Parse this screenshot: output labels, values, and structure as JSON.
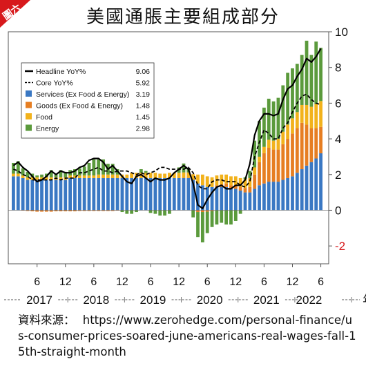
{
  "badge": {
    "label": "圖六",
    "color": "#d7191c"
  },
  "title": "美國通脹主要組成部分",
  "source": {
    "label": "資料來源：",
    "url": "https://www.zerohedge.com/personal-finance/us-consumer-prices-soared-june-americans-real-wages-fall-15th-straight-month"
  },
  "legend": {
    "items": [
      {
        "label": "Headline YoY%",
        "value": "9.06",
        "kind": "solid-line",
        "color": "#000000"
      },
      {
        "label": "Core YoY%",
        "value": "5.92",
        "kind": "dashed-line",
        "color": "#000000"
      },
      {
        "label": "Services (Ex Food & Energy)",
        "value": "3.19",
        "kind": "box",
        "color": "#3a78c3"
      },
      {
        "label": "Goods (Ex Food & Energy)",
        "value": "1.48",
        "kind": "box",
        "color": "#e67e22"
      },
      {
        "label": "Food",
        "value": "1.45",
        "kind": "box",
        "color": "#f2b21c"
      },
      {
        "label": "Energy",
        "value": "2.98",
        "kind": "box",
        "color": "#5b9a3c"
      }
    ]
  },
  "chart_data": {
    "type": "bar",
    "stacked": true,
    "y_axis_side": "right",
    "ylim": [
      -3,
      10
    ],
    "yticks": [
      -2,
      0,
      2,
      4,
      6,
      8,
      10
    ],
    "negative_tick_color": "#d7191c",
    "grid": false,
    "legend_position": "top-left",
    "x": [
      "2017-01",
      "2017-02",
      "2017-03",
      "2017-04",
      "2017-05",
      "2017-06",
      "2017-07",
      "2017-08",
      "2017-09",
      "2017-10",
      "2017-11",
      "2017-12",
      "2018-01",
      "2018-02",
      "2018-03",
      "2018-04",
      "2018-05",
      "2018-06",
      "2018-07",
      "2018-08",
      "2018-09",
      "2018-10",
      "2018-11",
      "2018-12",
      "2019-01",
      "2019-02",
      "2019-03",
      "2019-04",
      "2019-05",
      "2019-06",
      "2019-07",
      "2019-08",
      "2019-09",
      "2019-10",
      "2019-11",
      "2019-12",
      "2020-01",
      "2020-02",
      "2020-03",
      "2020-04",
      "2020-05",
      "2020-06",
      "2020-07",
      "2020-08",
      "2020-09",
      "2020-10",
      "2020-11",
      "2020-12",
      "2021-01",
      "2021-02",
      "2021-03",
      "2021-04",
      "2021-05",
      "2021-06",
      "2021-07",
      "2021-08",
      "2021-09",
      "2021-10",
      "2021-11",
      "2021-12",
      "2022-01",
      "2022-02",
      "2022-03",
      "2022-04",
      "2022-05",
      "2022-06"
    ],
    "x_tick_labels": [
      "6",
      "12",
      "6",
      "12",
      "6",
      "12",
      "6",
      "12",
      "6",
      "12",
      "6"
    ],
    "x_tick_dates": [
      "2017-06",
      "2017-12",
      "2018-06",
      "2018-12",
      "2019-06",
      "2019-12",
      "2020-06",
      "2020-12",
      "2021-06",
      "2021-12",
      "2022-06"
    ],
    "year_labels": [
      "2017",
      "2018",
      "2019",
      "2020",
      "2021",
      "2022",
      "年"
    ],
    "series": [
      {
        "name": "Services (Ex Food & Energy)",
        "color": "#3a78c3",
        "values": [
          1.9,
          1.9,
          1.8,
          1.7,
          1.7,
          1.7,
          1.7,
          1.7,
          1.7,
          1.7,
          1.7,
          1.7,
          1.8,
          1.8,
          1.8,
          1.8,
          1.8,
          1.8,
          1.8,
          1.8,
          1.8,
          1.8,
          1.8,
          1.8,
          1.8,
          1.8,
          1.8,
          1.8,
          1.8,
          1.8,
          1.8,
          1.8,
          1.8,
          1.8,
          1.8,
          1.8,
          1.8,
          1.8,
          1.7,
          1.5,
          1.4,
          1.3,
          1.3,
          1.3,
          1.3,
          1.3,
          1.2,
          1.2,
          1.1,
          1.0,
          1.0,
          1.2,
          1.4,
          1.5,
          1.6,
          1.6,
          1.6,
          1.7,
          1.8,
          1.9,
          2.1,
          2.3,
          2.5,
          2.7,
          2.9,
          3.19
        ]
      },
      {
        "name": "Goods (Ex Food & Energy)",
        "color": "#e67e22",
        "values": [
          0.0,
          0.0,
          -0.02,
          -0.04,
          -0.06,
          -0.08,
          -0.08,
          -0.08,
          -0.08,
          -0.06,
          -0.06,
          -0.06,
          -0.06,
          -0.06,
          -0.04,
          -0.04,
          -0.04,
          -0.04,
          -0.04,
          -0.04,
          -0.04,
          -0.04,
          -0.02,
          0.0,
          0.0,
          0.0,
          0.0,
          0.0,
          0.0,
          0.0,
          0.0,
          0.0,
          0.0,
          0.0,
          0.0,
          0.0,
          0.02,
          0.02,
          0.02,
          -0.1,
          -0.1,
          -0.08,
          -0.04,
          0.1,
          0.15,
          0.2,
          0.2,
          0.2,
          0.2,
          0.25,
          0.3,
          0.8,
          1.3,
          1.7,
          1.9,
          1.8,
          1.8,
          2.0,
          2.2,
          2.4,
          2.5,
          2.6,
          2.3,
          1.9,
          1.7,
          1.48
        ]
      },
      {
        "name": "Food",
        "color": "#f2b21c",
        "values": [
          0.15,
          0.15,
          0.15,
          0.15,
          0.15,
          0.15,
          0.15,
          0.15,
          0.15,
          0.15,
          0.15,
          0.15,
          0.15,
          0.15,
          0.15,
          0.15,
          0.15,
          0.15,
          0.2,
          0.2,
          0.2,
          0.2,
          0.2,
          0.2,
          0.2,
          0.3,
          0.3,
          0.3,
          0.3,
          0.3,
          0.3,
          0.25,
          0.25,
          0.3,
          0.3,
          0.3,
          0.3,
          0.3,
          0.3,
          0.5,
          0.6,
          0.6,
          0.55,
          0.55,
          0.55,
          0.5,
          0.5,
          0.5,
          0.5,
          0.5,
          0.5,
          0.4,
          0.3,
          0.35,
          0.45,
          0.5,
          0.6,
          0.7,
          0.8,
          0.85,
          0.9,
          1.0,
          1.1,
          1.2,
          1.35,
          1.45
        ]
      },
      {
        "name": "Energy",
        "color": "#5b9a3c",
        "values": [
          0.6,
          0.7,
          0.4,
          0.3,
          0.2,
          0.1,
          0.15,
          0.2,
          0.4,
          0.2,
          0.4,
          0.3,
          0.3,
          0.35,
          0.4,
          0.5,
          0.7,
          0.9,
          0.85,
          0.85,
          0.6,
          0.6,
          0.3,
          -0.1,
          -0.2,
          -0.2,
          -0.1,
          0.2,
          0.1,
          -0.15,
          -0.2,
          -0.3,
          -0.3,
          -0.2,
          0.0,
          0.3,
          0.5,
          0.2,
          -0.4,
          -1.4,
          -1.7,
          -1.2,
          -0.9,
          -0.8,
          -0.7,
          -0.8,
          -0.8,
          -0.6,
          -0.2,
          0.1,
          0.4,
          1.5,
          2.0,
          2.2,
          2.3,
          2.2,
          2.3,
          2.6,
          2.9,
          2.8,
          2.7,
          2.8,
          3.6,
          2.9,
          3.5,
          2.98
        ]
      }
    ],
    "lines": [
      {
        "name": "Headline YoY%",
        "style": "solid",
        "color": "#000000",
        "values": [
          2.5,
          2.7,
          2.4,
          2.2,
          1.9,
          1.6,
          1.7,
          1.9,
          2.2,
          2.0,
          2.2,
          2.1,
          2.1,
          2.2,
          2.4,
          2.5,
          2.8,
          2.9,
          2.9,
          2.7,
          2.3,
          2.5,
          2.2,
          1.9,
          1.6,
          1.5,
          1.9,
          2.0,
          1.8,
          1.6,
          1.8,
          1.7,
          1.7,
          1.8,
          2.1,
          2.3,
          2.5,
          2.3,
          1.5,
          0.3,
          0.1,
          0.6,
          1.0,
          1.3,
          1.4,
          1.2,
          1.2,
          1.4,
          1.4,
          1.7,
          2.6,
          4.2,
          5.0,
          5.4,
          5.4,
          5.3,
          5.4,
          6.2,
          6.8,
          7.0,
          7.5,
          7.9,
          8.5,
          8.3,
          8.6,
          9.06
        ]
      },
      {
        "name": "Core YoY%",
        "style": "dashed",
        "color": "#000000",
        "values": [
          2.3,
          2.2,
          2.0,
          1.9,
          1.7,
          1.7,
          1.7,
          1.7,
          1.7,
          1.8,
          1.7,
          1.8,
          1.8,
          1.8,
          2.1,
          2.1,
          2.2,
          2.3,
          2.4,
          2.2,
          2.2,
          2.1,
          2.2,
          2.2,
          2.2,
          2.1,
          2.0,
          2.1,
          2.0,
          2.1,
          2.2,
          2.4,
          2.4,
          2.3,
          2.3,
          2.3,
          2.3,
          2.4,
          2.1,
          1.4,
          1.2,
          1.2,
          1.6,
          1.7,
          1.7,
          1.6,
          1.6,
          1.6,
          1.4,
          1.3,
          1.6,
          3.0,
          3.8,
          4.5,
          4.3,
          4.0,
          4.0,
          4.6,
          4.9,
          5.5,
          6.0,
          6.4,
          6.5,
          6.2,
          6.0,
          5.92
        ]
      }
    ]
  }
}
